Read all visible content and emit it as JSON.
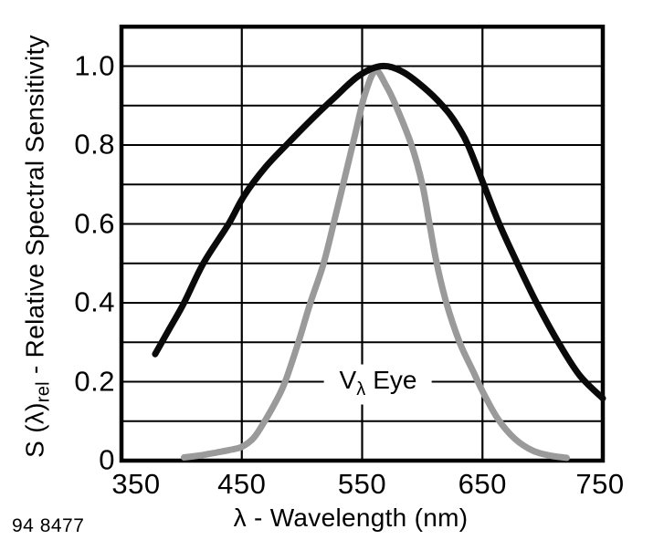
{
  "figure": {
    "code": "94 8477",
    "background": "#ffffff",
    "frame_color": "#000000"
  },
  "chart_data": {
    "type": "line",
    "title": "",
    "xlabel": "λ - Wavelength (nm)",
    "ylabel_text": "S (λ)rel - Relative Spectral Sensitivity",
    "ylabel_parts": {
      "pre": "S (λ)",
      "sub": "rel",
      "post": " - Relative Spectral Sensitivity"
    },
    "xlim": [
      350,
      750
    ],
    "ylim": [
      0,
      1.1
    ],
    "x_ticks": [
      350,
      450,
      550,
      650,
      750
    ],
    "x_tick_labels": [
      "350",
      "450",
      "550",
      "650",
      "750"
    ],
    "y_ticks": [
      0,
      0.2,
      0.4,
      0.6,
      0.8,
      1.0
    ],
    "y_tick_labels": [
      "0",
      "0.2",
      "0.4",
      "0.6",
      "0.8",
      "1.0"
    ],
    "grid": true,
    "y_grid_step": 0.1,
    "x_gridlines": [
      450,
      550,
      650
    ],
    "legend_position": "inline-annotation",
    "annotation": {
      "pre": "V",
      "sub": "λ",
      "post": "Eye",
      "x": 563,
      "y": 0.193
    },
    "series": [
      {
        "name": "V(λ) Eye",
        "color": "#9a9a9a",
        "stroke_width": 7,
        "points": [
          [
            402,
            0.008
          ],
          [
            415,
            0.013
          ],
          [
            428,
            0.02
          ],
          [
            440,
            0.027
          ],
          [
            450,
            0.035
          ],
          [
            460,
            0.058
          ],
          [
            469,
            0.1
          ],
          [
            478,
            0.148
          ],
          [
            486,
            0.2
          ],
          [
            497,
            0.3
          ],
          [
            507,
            0.4
          ],
          [
            518,
            0.5
          ],
          [
            527,
            0.61
          ],
          [
            535,
            0.71
          ],
          [
            544,
            0.825
          ],
          [
            552,
            0.925
          ],
          [
            561,
            0.988
          ],
          [
            570,
            0.95
          ],
          [
            578,
            0.9
          ],
          [
            591,
            0.8
          ],
          [
            600,
            0.7
          ],
          [
            606,
            0.6
          ],
          [
            612,
            0.5
          ],
          [
            620,
            0.4
          ],
          [
            631,
            0.3
          ],
          [
            642,
            0.228
          ],
          [
            651,
            0.17
          ],
          [
            663,
            0.105
          ],
          [
            677,
            0.055
          ],
          [
            692,
            0.025
          ],
          [
            706,
            0.013
          ],
          [
            720,
            0.007
          ]
        ]
      },
      {
        "name": "S(λ)rel",
        "color": "#0a0a0a",
        "stroke_width": 7,
        "points": [
          [
            378,
            0.27
          ],
          [
            390,
            0.335
          ],
          [
            402,
            0.4
          ],
          [
            418,
            0.5
          ],
          [
            439,
            0.6
          ],
          [
            452,
            0.672
          ],
          [
            470,
            0.745
          ],
          [
            487,
            0.8
          ],
          [
            507,
            0.862
          ],
          [
            527,
            0.92
          ],
          [
            547,
            0.975
          ],
          [
            566,
            1.0
          ],
          [
            584,
            0.985
          ],
          [
            605,
            0.936
          ],
          [
            621,
            0.885
          ],
          [
            630,
            0.845
          ],
          [
            638,
            0.8
          ],
          [
            651,
            0.7
          ],
          [
            664,
            0.6
          ],
          [
            679,
            0.5
          ],
          [
            695,
            0.4
          ],
          [
            713,
            0.3
          ],
          [
            731,
            0.215
          ],
          [
            750,
            0.158
          ]
        ]
      }
    ]
  }
}
